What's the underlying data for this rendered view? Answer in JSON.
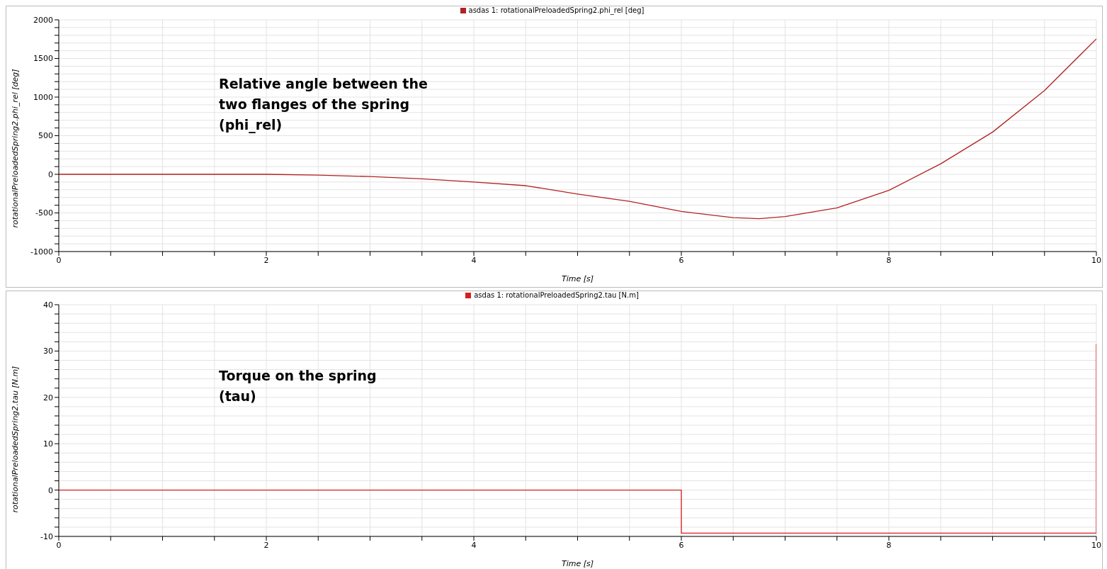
{
  "chart_data": [
    {
      "type": "line",
      "xlabel": "Time [s]",
      "ylabel": "rotationalPreloadedSpring2.phi_rel [deg]",
      "annotations": [
        "Relative angle between the\ntwo flanges of the spring\n(phi_rel)"
      ],
      "series": [
        {
          "name": "asdas 1: rotationalPreloadedSpring2.phi_rel [deg]",
          "color": "#b22222",
          "x": [
            0,
            1,
            2,
            2.5,
            3,
            3.5,
            4,
            4.5,
            5,
            5.5,
            6,
            6.5,
            6.75,
            7,
            7.5,
            8,
            8.5,
            9,
            9.5,
            10
          ],
          "values": [
            0,
            0,
            0,
            -10,
            -29,
            -58,
            -100,
            -147,
            -255,
            -350,
            -480,
            -561,
            -575,
            -547,
            -434,
            -208,
            136,
            547,
            1085,
            1753
          ]
        }
      ],
      "xlim": [
        0,
        10
      ],
      "xticks": [
        0,
        {
          "value": 0.5,
          "label": null
        },
        {
          "value": 1,
          "label": null
        },
        {
          "value": 1.5,
          "label": null
        },
        2,
        {
          "value": 2.5,
          "label": null
        },
        {
          "value": 3,
          "label": null
        },
        {
          "value": 3.5,
          "label": null
        },
        4,
        {
          "value": 4.5,
          "label": null
        },
        {
          "value": 5,
          "label": null
        },
        {
          "value": 5.5,
          "label": null
        },
        6,
        {
          "value": 6.5,
          "label": null
        },
        {
          "value": 7,
          "label": null
        },
        {
          "value": 7.5,
          "label": null
        },
        8,
        {
          "value": 8.5,
          "label": null
        },
        {
          "value": 9,
          "label": null
        },
        {
          "value": 9.5,
          "label": null
        },
        10
      ],
      "ylim": [
        -1000,
        2000
      ],
      "yticks": [
        -1000,
        {
          "value": -900,
          "label": null
        },
        {
          "value": -800,
          "label": null
        },
        {
          "value": -700,
          "label": null
        },
        {
          "value": -600,
          "label": null
        },
        -500,
        {
          "value": -400,
          "label": null
        },
        {
          "value": -300,
          "label": null
        },
        {
          "value": -200,
          "label": null
        },
        {
          "value": -100,
          "label": null
        },
        0,
        {
          "value": 100,
          "label": null
        },
        {
          "value": 200,
          "label": null
        },
        {
          "value": 300,
          "label": null
        },
        {
          "value": 400,
          "label": null
        },
        500,
        {
          "value": 600,
          "label": null
        },
        {
          "value": 700,
          "label": null
        },
        {
          "value": 800,
          "label": null
        },
        {
          "value": 900,
          "label": null
        },
        1000,
        {
          "value": 1100,
          "label": null
        },
        {
          "value": 1200,
          "label": null
        },
        {
          "value": 1300,
          "label": null
        },
        {
          "value": 1400,
          "label": null
        },
        1500,
        {
          "value": 1600,
          "label": null
        },
        {
          "value": 1700,
          "label": null
        },
        {
          "value": 1800,
          "label": null
        },
        {
          "value": 1900,
          "label": null
        },
        2000
      ],
      "grid": true,
      "legend": "top",
      "marker": "none",
      "line_style": "solid"
    },
    {
      "type": "line",
      "xlabel": "Time [s]",
      "ylabel": "rotationalPreloadedSpring2.tau [N.m]",
      "annotations": [
        "Torque on the spring\n(tau)"
      ],
      "series": [
        {
          "name": "asdas 1: rotationalPreloadedSpring2.tau [N.m]",
          "color": "#d42020",
          "x": [
            0,
            6,
            6,
            10,
            10
          ],
          "values": [
            0,
            0,
            -9.3,
            -9.3,
            31.5
          ]
        }
      ],
      "xlim": [
        0,
        10
      ],
      "xticks": [
        0,
        {
          "value": 0.5,
          "label": null
        },
        {
          "value": 1,
          "label": null
        },
        {
          "value": 1.5,
          "label": null
        },
        2,
        {
          "value": 2.5,
          "label": null
        },
        {
          "value": 3,
          "label": null
        },
        {
          "value": 3.5,
          "label": null
        },
        4,
        {
          "value": 4.5,
          "label": null
        },
        {
          "value": 5,
          "label": null
        },
        {
          "value": 5.5,
          "label": null
        },
        6,
        {
          "value": 6.5,
          "label": null
        },
        {
          "value": 7,
          "label": null
        },
        {
          "value": 7.5,
          "label": null
        },
        8,
        {
          "value": 8.5,
          "label": null
        },
        {
          "value": 9,
          "label": null
        },
        {
          "value": 9.5,
          "label": null
        },
        10
      ],
      "ylim": [
        -10,
        40
      ],
      "yticks": [
        -10,
        {
          "value": -8,
          "label": null
        },
        {
          "value": -6,
          "label": null
        },
        {
          "value": -4,
          "label": null
        },
        {
          "value": -2,
          "label": null
        },
        0,
        {
          "value": 2,
          "label": null
        },
        {
          "value": 4,
          "label": null
        },
        {
          "value": 6,
          "label": null
        },
        {
          "value": 8,
          "label": null
        },
        10,
        {
          "value": 12,
          "label": null
        },
        {
          "value": 14,
          "label": null
        },
        {
          "value": 16,
          "label": null
        },
        {
          "value": 18,
          "label": null
        },
        20,
        {
          "value": 22,
          "label": null
        },
        {
          "value": 24,
          "label": null
        },
        {
          "value": 26,
          "label": null
        },
        {
          "value": 28,
          "label": null
        },
        30,
        {
          "value": 32,
          "label": null
        },
        {
          "value": 34,
          "label": null
        },
        {
          "value": 36,
          "label": null
        },
        {
          "value": 38,
          "label": null
        },
        40
      ],
      "grid": true,
      "legend": "top",
      "marker": "none",
      "line_style": "solid"
    }
  ]
}
